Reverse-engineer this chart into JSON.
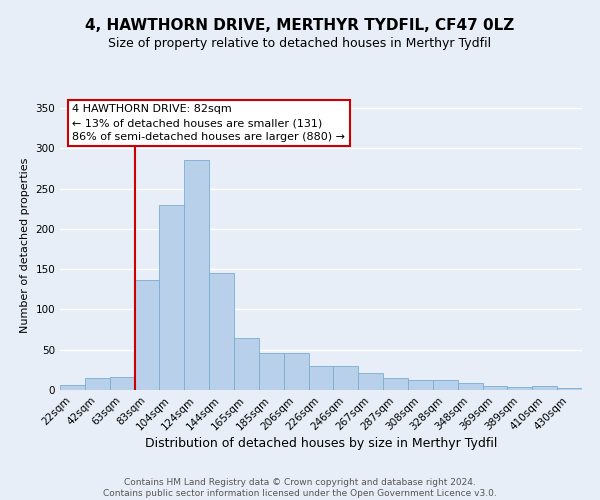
{
  "title": "4, HAWTHORN DRIVE, MERTHYR TYDFIL, CF47 0LZ",
  "subtitle": "Size of property relative to detached houses in Merthyr Tydfil",
  "xlabel": "Distribution of detached houses by size in Merthyr Tydfil",
  "ylabel": "Number of detached properties",
  "bar_labels": [
    "22sqm",
    "42sqm",
    "63sqm",
    "83sqm",
    "104sqm",
    "124sqm",
    "144sqm",
    "165sqm",
    "185sqm",
    "206sqm",
    "226sqm",
    "246sqm",
    "267sqm",
    "287sqm",
    "308sqm",
    "328sqm",
    "348sqm",
    "369sqm",
    "389sqm",
    "410sqm",
    "430sqm"
  ],
  "bar_values": [
    6,
    15,
    16,
    136,
    230,
    285,
    145,
    65,
    46,
    46,
    30,
    30,
    21,
    15,
    12,
    12,
    9,
    5,
    4,
    5,
    3
  ],
  "bar_color": "#b8d0ea",
  "bar_edge_color": "#7aadd4",
  "vline_idx": 3,
  "vline_color": "#cc0000",
  "annotation_text": "4 HAWTHORN DRIVE: 82sqm\n← 13% of detached houses are smaller (131)\n86% of semi-detached houses are larger (880) →",
  "annotation_box_color": "#ffffff",
  "annotation_box_edge": "#cc0000",
  "ylim": [
    0,
    360
  ],
  "yticks": [
    0,
    50,
    100,
    150,
    200,
    250,
    300,
    350
  ],
  "footer": "Contains HM Land Registry data © Crown copyright and database right 2024.\nContains public sector information licensed under the Open Government Licence v3.0.",
  "bg_color": "#e8eef8",
  "grid_color": "#ffffff",
  "title_fontsize": 11,
  "subtitle_fontsize": 9,
  "xlabel_fontsize": 9,
  "ylabel_fontsize": 8,
  "tick_fontsize": 7.5,
  "footer_fontsize": 6.5,
  "annotation_fontsize": 8
}
